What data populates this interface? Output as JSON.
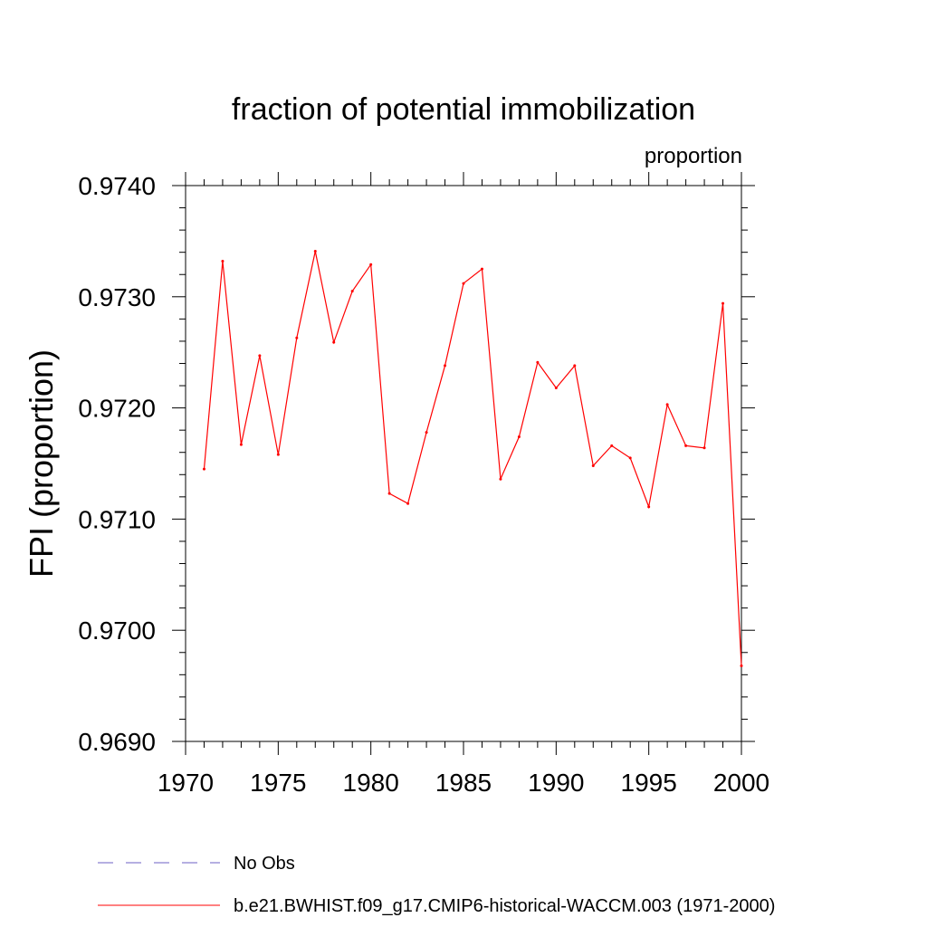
{
  "chart_data": {
    "type": "line",
    "title": "fraction of potential immobilization",
    "subtitle": "proportion",
    "ylabel": "FPI  (proportion)",
    "xlabel": "",
    "xlim": [
      1970,
      2000
    ],
    "ylim": [
      0.969,
      0.974
    ],
    "x_ticks": [
      "1970",
      "1975",
      "1980",
      "1985",
      "1990",
      "1995",
      "2000"
    ],
    "y_ticks": [
      "0.9690",
      "0.9700",
      "0.9710",
      "0.9720",
      "0.9730",
      "0.9740"
    ],
    "grid": false,
    "legend_position": "bottom-left",
    "legend": [
      {
        "label": "No Obs",
        "color": "#6e5fc4",
        "style": "dashed"
      },
      {
        "label": "b.e21.BWHIST.f09_g17.CMIP6-historical-WACCM.003 (1971-2000)",
        "color": "#ff0000",
        "style": "solid"
      }
    ],
    "series": [
      {
        "name": "b.e21.BWHIST.f09_g17.CMIP6-historical-WACCM.003 (1971-2000)",
        "color": "#ff0000",
        "x": [
          1971,
          1972,
          1973,
          1974,
          1975,
          1976,
          1977,
          1978,
          1979,
          1980,
          1981,
          1982,
          1983,
          1984,
          1985,
          1986,
          1987,
          1988,
          1989,
          1990,
          1991,
          1992,
          1993,
          1994,
          1995,
          1996,
          1997,
          1998,
          1999,
          2000
        ],
        "values": [
          0.97145,
          0.97332,
          0.97167,
          0.97247,
          0.97158,
          0.97263,
          0.97341,
          0.97259,
          0.97305,
          0.97329,
          0.97123,
          0.97114,
          0.97178,
          0.97238,
          0.97312,
          0.97325,
          0.97136,
          0.97174,
          0.97241,
          0.97218,
          0.97238,
          0.97148,
          0.97166,
          0.97155,
          0.97111,
          0.97203,
          0.97166,
          0.97164,
          0.97294,
          0.96968
        ]
      }
    ]
  }
}
